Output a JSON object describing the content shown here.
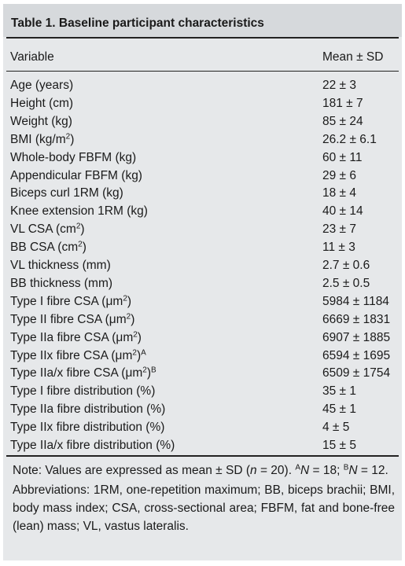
{
  "table": {
    "title": "Table 1.  Baseline participant characteristics",
    "header": {
      "variable": "Variable",
      "mean_sd": "Mean ± SD"
    },
    "rows": [
      {
        "label": "Age (years)",
        "value": "22 ± 3"
      },
      {
        "label": "Height (cm)",
        "value": "181 ± 7"
      },
      {
        "label": "Weight (kg)",
        "value": "85 ± 24"
      },
      {
        "label": "BMI (kg/m",
        "sup": "2",
        "suffix": ")",
        "value": "26.2 ± 6.1"
      },
      {
        "label": "Whole-body FBFM (kg)",
        "value": "60 ± 11"
      },
      {
        "label": "Appendicular FBFM (kg)",
        "value": "29 ± 6"
      },
      {
        "label": "Biceps curl 1RM (kg)",
        "value": "18 ± 4"
      },
      {
        "label": "Knee extension 1RM (kg)",
        "value": "40 ± 14"
      },
      {
        "label": "VL CSA (cm",
        "sup": "2",
        "suffix": ")",
        "value": "23 ± 7"
      },
      {
        "label": "BB CSA (cm",
        "sup": "2",
        "suffix": ")",
        "value": "11 ± 3"
      },
      {
        "label": "VL thickness (mm)",
        "value": "2.7 ± 0.6"
      },
      {
        "label": "BB thickness (mm)",
        "value": "2.5 ± 0.5"
      },
      {
        "label": "Type I fibre CSA (μm",
        "sup": "2",
        "suffix": ")",
        "value": "5984 ± 1184"
      },
      {
        "label": "Type II fibre CSA (μm",
        "sup": "2",
        "suffix": ")",
        "value": "6669 ± 1831"
      },
      {
        "label": "Type IIa fibre CSA (μm",
        "sup": "2",
        "suffix": ")",
        "value": "6907 ± 1885"
      },
      {
        "label": "Type IIx fibre CSA (μm",
        "sup": "2",
        "suffix": ")",
        "sup2": "A",
        "value": "6594 ± 1695"
      },
      {
        "label": "Type IIa/x fibre CSA (μm",
        "sup": "2",
        "suffix": ")",
        "sup2": "B",
        "value": "6509 ± 1754"
      },
      {
        "label": "Type I fibre distribution (%)",
        "value": "35 ± 1"
      },
      {
        "label": "Type IIa fibre distribution (%)",
        "value": "45 ± 1"
      },
      {
        "label": "Type IIx fibre distribution (%)",
        "value": "4 ± 5"
      },
      {
        "label": "Type IIa/x fibre distribution (%)",
        "value": "15 ± 5"
      }
    ]
  },
  "notes": {
    "note_prefix": "Note: Values are expressed as mean ± SD (",
    "note_n": "n",
    "note_eq": " = 20). ",
    "note_a_sup": "A",
    "note_a_n": "N",
    "note_a_val": " = 18; ",
    "note_b_sup": "B",
    "note_b_n": "N",
    "note_b_val": " = 12.",
    "abbreviations": "Abbreviations: 1RM, one-repetition maximum; BB, biceps brachii; BMI, body mass index; CSA, cross-sectional area; FBFM, fat and bone-free (lean) mass; VL, vastus lateralis."
  }
}
